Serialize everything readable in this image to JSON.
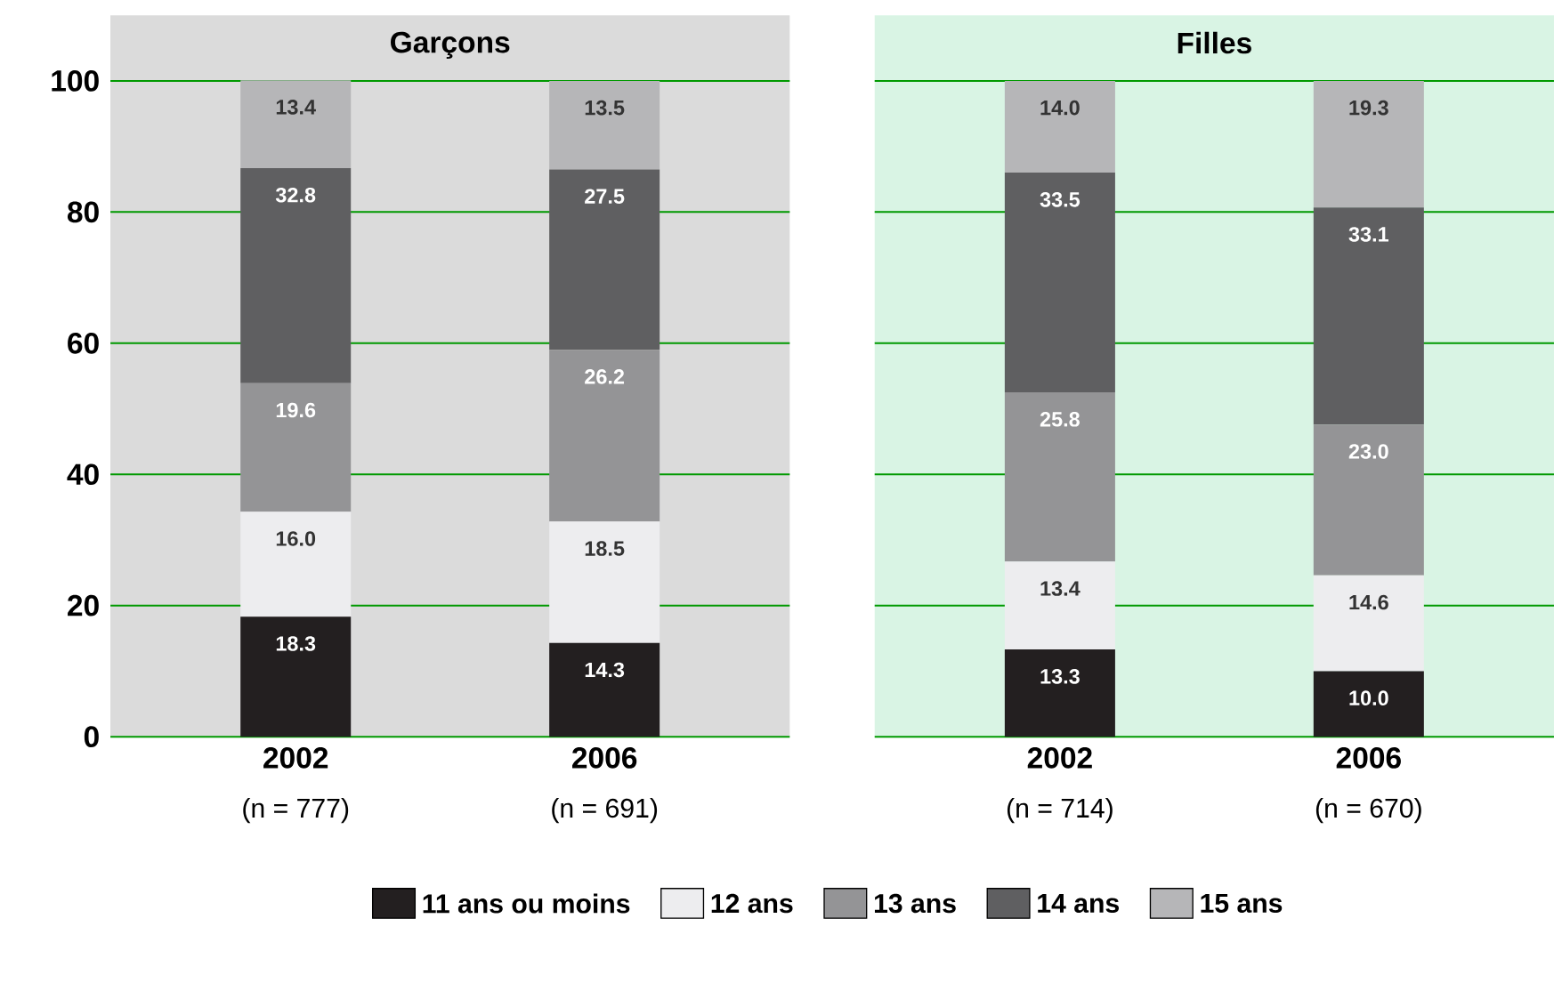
{
  "chart_data": [
    {
      "type": "bar",
      "stacked": true,
      "title": "Garçons",
      "categories": [
        "2002",
        "2006"
      ],
      "series": [
        {
          "name": "11 ans ou moins",
          "color": "#231f20",
          "values": [
            18.3,
            14.3
          ],
          "value_labels": [
            "18.3",
            "14.3"
          ]
        },
        {
          "name": "12 ans",
          "color": "#ededef",
          "values": [
            16.0,
            18.5
          ],
          "value_labels": [
            "16.0",
            "18.5"
          ]
        },
        {
          "name": "13 ans",
          "color": "#949496",
          "values": [
            19.6,
            26.2
          ],
          "value_labels": [
            "19.6",
            "26.2"
          ]
        },
        {
          "name": "14 ans",
          "color": "#5f5f61",
          "values": [
            32.8,
            27.5
          ],
          "value_labels": [
            "32.8",
            "27.5"
          ]
        },
        {
          "name": "15 ans",
          "color": "#b6b6b8",
          "values": [
            13.4,
            13.5
          ],
          "value_labels": [
            "13.4",
            "13.5"
          ]
        }
      ],
      "annotations": [
        "(n = 777)",
        "(n = 691)"
      ],
      "ylim": [
        0,
        110
      ],
      "yticks": [
        0,
        20,
        40,
        60,
        80,
        100
      ],
      "grid": "y",
      "legend": "bottom"
    },
    {
      "type": "bar",
      "stacked": true,
      "title": "Filles",
      "categories": [
        "2002",
        "2006"
      ],
      "series": [
        {
          "color": "#231f20",
          "values": [
            13.3,
            10.0
          ],
          "value_labels": [
            "13.3",
            "10.0"
          ]
        },
        {
          "color": "#ededef",
          "values": [
            13.4,
            14.6
          ],
          "value_labels": [
            "13.4",
            "14.6"
          ]
        },
        {
          "color": "#949496",
          "values": [
            25.8,
            23.0
          ],
          "value_labels": [
            "25.8",
            "23.0"
          ]
        },
        {
          "color": "#5f5f61",
          "values": [
            33.5,
            33.1
          ],
          "value_labels": [
            "33.5",
            "33.1"
          ]
        },
        {
          "color": "#b6b6b8",
          "values": [
            14.0,
            19.3
          ],
          "value_labels": [
            "14.0",
            "19.3"
          ]
        }
      ],
      "annotations": [
        "(n = 714)",
        "(n = 670)"
      ],
      "ylim": [
        0,
        110
      ],
      "yticks": [
        0,
        20,
        40,
        60,
        80,
        100
      ],
      "grid": "y",
      "tick_labels": "x"
    }
  ]
}
